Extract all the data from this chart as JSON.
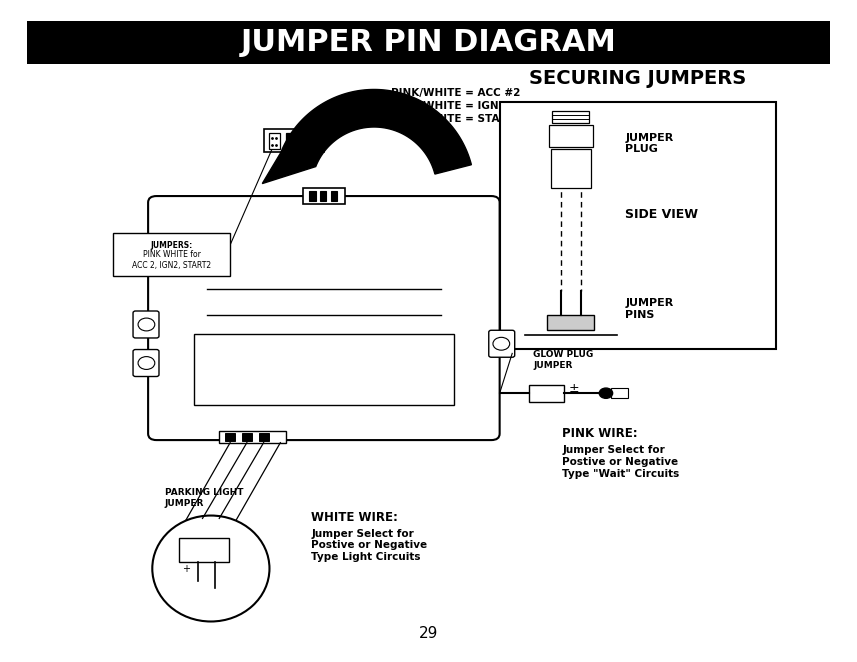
{
  "title": "JUMPER PIN DIAGRAM",
  "title_bg": "#000000",
  "title_color": "#ffffff",
  "title_fontsize": 22,
  "bg_color": "#ffffff",
  "page_number": "29",
  "securing_jumpers_title": "SECURING JUMPERS",
  "label_acc": "PINK/WHITE = ACC #2",
  "label_ign": "PINK/WHITE = IGN #2 (DEFAULT)",
  "label_start": "PINK/WHITE = START #2",
  "label_jumper_plug": "JUMPER\nPLUG",
  "label_side_view": "SIDE VIEW",
  "label_jumper_pins": "JUMPER\nPINS",
  "label_glow_plug": "GLOW PLUG\nJUMPER",
  "label_parking_light": "PARKING LIGHT\nJUMPER",
  "label_white_wire_title": "WHITE WIRE:",
  "label_white_wire_body": "Jumper Select for\nPostive or Negative\nType Light Circuits",
  "label_pink_wire_title": "PINK WIRE:",
  "label_pink_wire_body": "Jumper Select for\nPostive or Negative\nType \"Wait\" Circuits"
}
